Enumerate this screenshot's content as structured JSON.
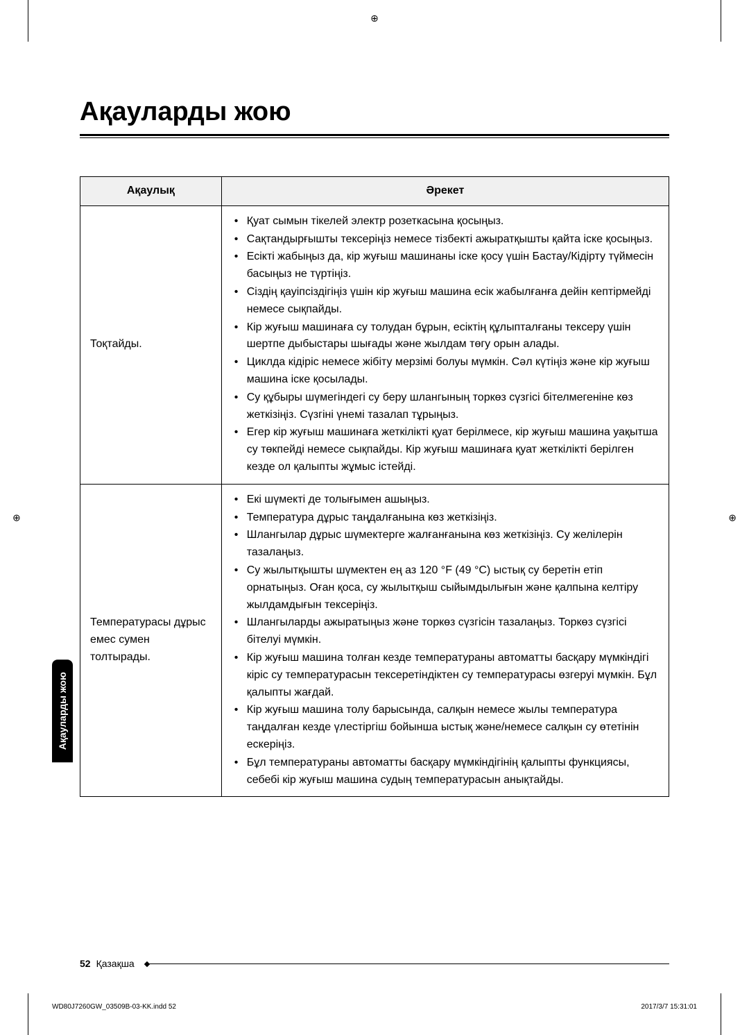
{
  "page": {
    "title": "Ақауларды жою",
    "number": "52",
    "language": "Қазақша",
    "side_tab": "Ақауларды жою"
  },
  "crop_marks": {
    "symbol": "⊕"
  },
  "table": {
    "headers": {
      "problem": "Ақаулық",
      "action": "Әрекет"
    },
    "rows": [
      {
        "problem": "Тоқтайды.",
        "actions": [
          "Қуат сымын тікелей электр розеткасына қосыңыз.",
          "Сақтандырғышты тексеріңіз немесе тізбекті ажыратқышты қайта іске қосыңыз.",
          "Есікті жабыңыз да, кір жуғыш машинаны іске қосу үшін Бастау/Кідірту түймесін басыңыз не түртіңіз.",
          "Сіздің қауіпсіздігіңіз үшін кір жуғыш машина есік жабылғанға дейін кептірмейді немесе сықпайды.",
          "Кір жуғыш машинаға су толудан бұрын, есіктің құлыпталғаны тексеру үшін шертпе дыбыстары шығады және жылдам төгу орын алады.",
          "Циклда кідіріс немесе жібіту мерзімі болуы мүмкін. Сәл күтіңіз және кір жуғыш машина іске қосылады.",
          "Су құбыры шүмегіндегі су беру шлангының торкөз сүзгісі бітелмегеніне көз жеткізіңіз. Сүзгіні үнемі тазалап тұрыңыз.",
          "Егер кір жуғыш машинаға жеткілікті қуат берілмесе, кір жуғыш машина уақытша су төкпейді немесе сықпайды. Кір жуғыш машинаға қуат жеткілікті берілген кезде ол қалыпты жұмыс істейді."
        ]
      },
      {
        "problem": "Температурасы дұрыс емес сумен толтырады.",
        "actions": [
          "Екі шүмекті де толығымен ашыңыз.",
          "Температура дұрыс таңдалғанына көз жеткізіңіз.",
          "Шлангылар дұрыс шүмектерге жалғанғанына көз жеткізіңіз. Су желілерін тазалаңыз.",
          "Су жылытқышты шүмектен ең аз 120 °F (49 °C) ыстық су беретін етіп орнатыңыз. Оған қоса, су жылытқыш сыйымдылығын және қалпына келтіру жылдамдығын тексеріңіз.",
          "Шлангыларды ажыратыңыз және торкөз сүзгісін тазалаңыз. Торкөз сүзгісі бітелуі мүмкін.",
          "Кір жуғыш машина толған кезде температураны автоматты басқару мүмкіндігі кіріс су температурасын тексеретіндіктен су температурасы өзгеруі мүмкін. Бұл қалыпты жағдай.",
          "Кір жуғыш машина толу барысында, салқын немесе жылы температура таңдалған кезде үлестіргіш бойынша ыстық және/немесе салқын су өтетінін ескеріңіз.",
          "Бұл температураны автоматты басқару мүмкіндігінің қалыпты функциясы, себебі кір жуғыш машина судың температурасын анықтайды."
        ]
      }
    ]
  },
  "print_footer": {
    "file": "WD80J7260GW_03509B-03-KK.indd   52",
    "timestamp": "2017/3/7   15:31:01"
  }
}
